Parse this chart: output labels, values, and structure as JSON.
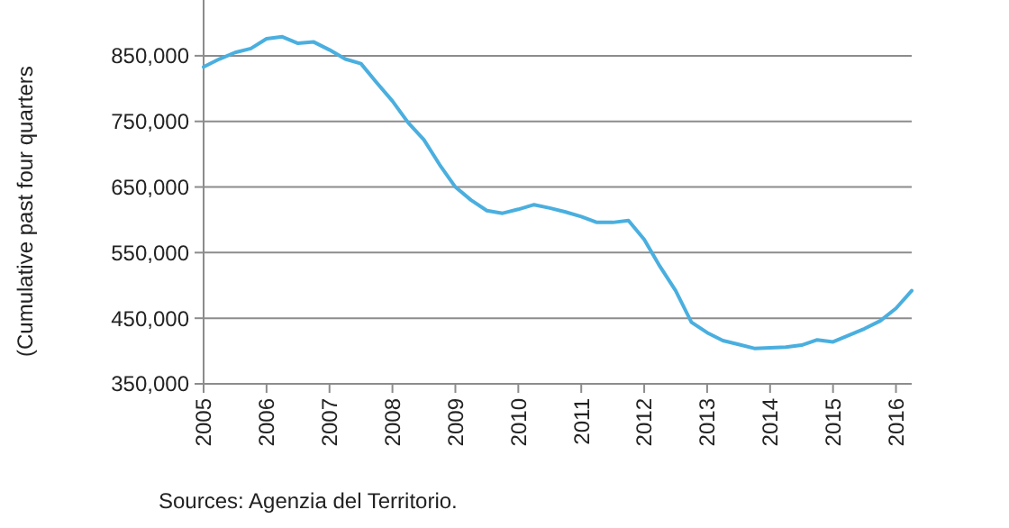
{
  "chart_data": {
    "type": "line",
    "ylabel": "(Cumulative past four quarters",
    "annotations": [
      "Sources: Agenzia del Territorio."
    ],
    "x": [
      2005,
      2005.25,
      2005.5,
      2005.75,
      2006,
      2006.25,
      2006.5,
      2006.75,
      2007,
      2007.25,
      2007.5,
      2007.75,
      2008,
      2008.25,
      2008.5,
      2008.75,
      2009,
      2009.25,
      2009.5,
      2009.75,
      2010,
      2010.25,
      2010.5,
      2010.75,
      2011,
      2011.25,
      2011.5,
      2011.75,
      2012,
      2012.25,
      2012.5,
      2012.75,
      2013,
      2013.25,
      2013.5,
      2013.75,
      2014,
      2014.25,
      2014.5,
      2014.75,
      2015,
      2015.25,
      2015.5,
      2015.75,
      2016,
      2016.25
    ],
    "series": [
      {
        "color": "#4aafdf",
        "values": [
          833000,
          845000,
          855000,
          861000,
          876000,
          879000,
          869000,
          871000,
          859000,
          845000,
          838000,
          809000,
          781000,
          748000,
          722000,
          684000,
          650000,
          630000,
          614000,
          610000,
          616000,
          623000,
          618000,
          612000,
          605000,
          596000,
          596000,
          599000,
          570000,
          529000,
          492000,
          444000,
          428000,
          416000,
          410000,
          404000,
          405000,
          406000,
          409000,
          417000,
          414000,
          424000,
          434000,
          446000,
          465000,
          492000
        ]
      }
    ],
    "xlim": [
      2005,
      2016.25
    ],
    "xticks": [
      2005,
      2006,
      2007,
      2008,
      2009,
      2010,
      2011,
      2012,
      2013,
      2014,
      2015,
      2016
    ],
    "ylim": [
      350000,
      935000
    ],
    "yticks": [
      {
        "value": 350000,
        "label": "350,000"
      },
      {
        "value": 450000,
        "label": "450,000"
      },
      {
        "value": 550000,
        "label": "550,000"
      },
      {
        "value": 650000,
        "label": "650,000"
      },
      {
        "value": 750000,
        "label": "750,000"
      },
      {
        "value": 850000,
        "label": "850,000"
      }
    ],
    "grid": "y",
    "marker": "none",
    "line_style": "solid"
  }
}
